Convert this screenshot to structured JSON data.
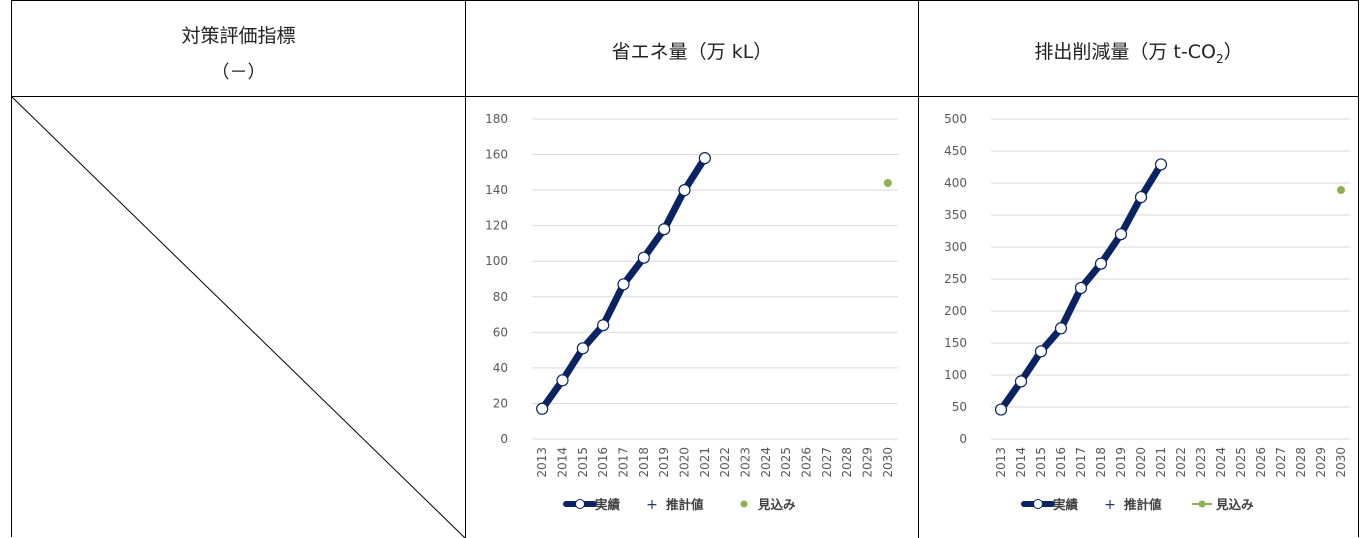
{
  "header": {
    "col1_line1": "対策評価指標",
    "col1_line2": "（－）",
    "col2_title": "省エネ量（万 kL）",
    "col3_title_pre": "排出削減量（万 t-CO",
    "col3_title_sub": "2",
    "col3_title_post": "）"
  },
  "colors": {
    "actual_line": "#0a2463",
    "estimate": "#1f3a6e",
    "projection": "#8db153",
    "grid": "#d9d9d9",
    "axis_text": "#595959"
  },
  "chart_data": [
    {
      "type": "line",
      "categories": [
        "2013",
        "2014",
        "2015",
        "2016",
        "2017",
        "2018",
        "2019",
        "2020",
        "2021",
        "2022",
        "2023",
        "2024",
        "2025",
        "2026",
        "2027",
        "2028",
        "2029",
        "2030"
      ],
      "yticks": [
        0,
        20,
        40,
        60,
        80,
        100,
        120,
        140,
        160,
        180
      ],
      "ylim": [
        0,
        180
      ],
      "series": [
        {
          "name": "実績",
          "values": [
            17,
            33,
            51,
            64,
            87,
            102,
            118,
            140,
            158,
            null,
            null,
            null,
            null,
            null,
            null,
            null,
            null,
            null
          ]
        },
        {
          "name": "推計値",
          "values": [
            null,
            null,
            null,
            null,
            null,
            null,
            null,
            null,
            null,
            null,
            null,
            null,
            null,
            null,
            null,
            null,
            null,
            null
          ]
        },
        {
          "name": "見込み",
          "values": [
            null,
            null,
            null,
            null,
            null,
            null,
            null,
            null,
            null,
            null,
            null,
            null,
            null,
            null,
            null,
            null,
            null,
            144
          ]
        }
      ],
      "legend": [
        "実績",
        "推計値",
        "見込み"
      ],
      "legend_style": "marker"
    },
    {
      "type": "line",
      "categories": [
        "2013",
        "2014",
        "2015",
        "2016",
        "2017",
        "2018",
        "2019",
        "2020",
        "2021",
        "2022",
        "2023",
        "2024",
        "2025",
        "2026",
        "2027",
        "2028",
        "2029",
        "2030"
      ],
      "yticks": [
        0,
        50,
        100,
        150,
        200,
        250,
        300,
        350,
        400,
        450,
        500
      ],
      "ylim": [
        0,
        500
      ],
      "series": [
        {
          "name": "実績",
          "values": [
            46,
            90,
            137,
            173,
            236,
            274,
            320,
            378,
            429,
            null,
            null,
            null,
            null,
            null,
            null,
            null,
            null,
            null
          ]
        },
        {
          "name": "推計値",
          "values": [
            null,
            null,
            null,
            null,
            null,
            null,
            null,
            null,
            null,
            null,
            null,
            null,
            null,
            null,
            null,
            null,
            null,
            null
          ]
        },
        {
          "name": "見込み",
          "values": [
            null,
            null,
            null,
            null,
            null,
            null,
            null,
            null,
            null,
            null,
            null,
            null,
            null,
            null,
            null,
            null,
            null,
            389
          ]
        }
      ],
      "legend": [
        "実績",
        "推計値",
        "見込み"
      ],
      "legend_style": "line-marker"
    }
  ]
}
